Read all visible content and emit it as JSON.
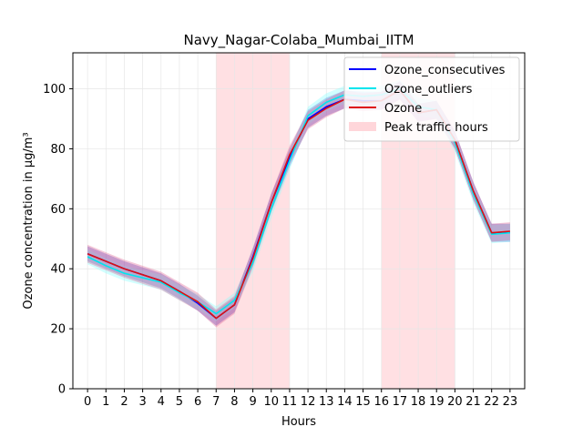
{
  "chart_data": {
    "type": "line",
    "title": "Navy_Nagar-Colaba_Mumbai_IITM",
    "xlabel": "Hours",
    "ylabel": "Ozone concentration in µg/m³",
    "x": [
      0,
      1,
      2,
      3,
      4,
      5,
      6,
      7,
      8,
      9,
      10,
      11,
      12,
      13,
      14,
      15,
      16,
      17,
      18,
      19,
      20,
      21,
      22,
      23
    ],
    "xlim": [
      -0.8,
      23.8
    ],
    "ylim": [
      0,
      112
    ],
    "yticks": [
      0,
      20,
      40,
      60,
      80,
      100
    ],
    "grid": true,
    "legend_position": "top-right",
    "shaded_regions": [
      {
        "name": "Peak traffic hours",
        "from": 7,
        "to": 11,
        "color": "#ffd6da"
      },
      {
        "name": "Peak traffic hours",
        "from": 16,
        "to": 20,
        "color": "#ffd6da"
      }
    ],
    "series": [
      {
        "name": "Ozone_consecutives",
        "color": "#0000ff",
        "band_color": "#3a3acc",
        "values": [
          45,
          42.5,
          40,
          38,
          36,
          32.5,
          28.5,
          23.5,
          28,
          44,
          62,
          77,
          90,
          94,
          96.5,
          96,
          96,
          99.5,
          92,
          93,
          83,
          66,
          52,
          52
        ],
        "band": [
          2.5,
          2.5,
          2.5,
          2.5,
          2.5,
          2.5,
          2.5,
          2.5,
          2.5,
          3,
          3,
          3,
          3,
          3,
          3,
          3,
          3,
          3,
          3,
          3,
          3,
          3,
          3,
          3
        ]
      },
      {
        "name": "Ozone_outliers",
        "color": "#00e5ee",
        "band_color": "#7fffff",
        "values": [
          44,
          41,
          38.5,
          37,
          35.5,
          32,
          29,
          25,
          29.5,
          42,
          60,
          76,
          91,
          95.5,
          98,
          97.5,
          98,
          100,
          94,
          93,
          82,
          65,
          51.5,
          52
        ],
        "band": [
          2.5,
          2.5,
          2.5,
          2.5,
          2.5,
          2.5,
          2.5,
          2.5,
          2.5,
          3,
          3,
          3,
          3,
          3,
          3,
          3,
          3,
          3,
          3,
          3,
          3,
          3,
          3,
          3
        ]
      },
      {
        "name": "Ozone",
        "color": "#dd1111",
        "band_color": "#e06090",
        "values": [
          45,
          42.5,
          40,
          38,
          36,
          32.5,
          29,
          23.5,
          28,
          43.5,
          62,
          78,
          89.5,
          93.5,
          96.5,
          95.5,
          96,
          99.5,
          92,
          93,
          83,
          66,
          52,
          52.5
        ],
        "band": [
          3,
          3,
          3,
          3,
          3,
          3,
          3,
          3,
          3,
          3,
          3,
          3,
          3,
          3,
          3,
          3,
          3,
          3,
          3,
          3,
          3,
          3,
          3,
          3
        ]
      }
    ],
    "legend": [
      "Ozone_consecutives",
      "Ozone_outliers",
      "Ozone",
      "Peak traffic hours"
    ]
  }
}
